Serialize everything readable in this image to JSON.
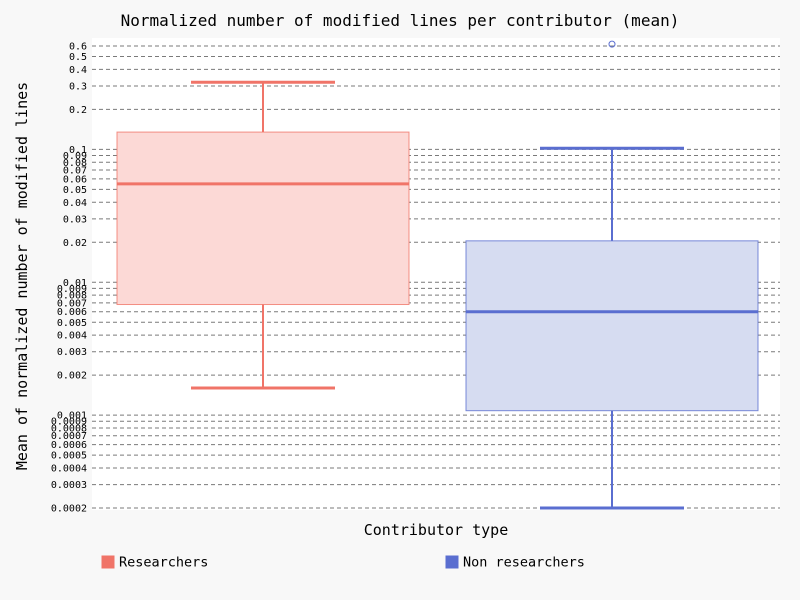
{
  "chart_data": {
    "type": "box",
    "title": "Normalized number of modified lines per contributor (mean)",
    "xlabel": "Contributor type",
    "ylabel": "Mean of normalized number of modified lines",
    "y_scale": "log",
    "ylim": [
      0.0002,
      0.6
    ],
    "grid": true,
    "legend_position": "bottom",
    "y_ticks": [
      {
        "value": 0.0002,
        "label": "0.0002"
      },
      {
        "value": 0.0003,
        "label": "0.0003"
      },
      {
        "value": 0.0004,
        "label": "0.0004"
      },
      {
        "value": 0.0005,
        "label": "0.0005"
      },
      {
        "value": 0.0006,
        "label": "0.0006"
      },
      {
        "value": 0.0007,
        "label": "0.0007"
      },
      {
        "value": 0.0008,
        "label": "0.0008"
      },
      {
        "value": 0.0009,
        "label": "0.0009"
      },
      {
        "value": 0.001,
        "label": "0.001"
      },
      {
        "value": 0.002,
        "label": "0.002"
      },
      {
        "value": 0.003,
        "label": "0.003"
      },
      {
        "value": 0.004,
        "label": "0.004"
      },
      {
        "value": 0.005,
        "label": "0.005"
      },
      {
        "value": 0.006,
        "label": "0.006"
      },
      {
        "value": 0.007,
        "label": "0.007"
      },
      {
        "value": 0.008,
        "label": "0.008"
      },
      {
        "value": 0.009,
        "label": "0.009"
      },
      {
        "value": 0.01,
        "label": "0.01"
      },
      {
        "value": 0.02,
        "label": "0.02"
      },
      {
        "value": 0.03,
        "label": "0.03"
      },
      {
        "value": 0.04,
        "label": "0.04"
      },
      {
        "value": 0.05,
        "label": "0.05"
      },
      {
        "value": 0.06,
        "label": "0.06"
      },
      {
        "value": 0.07,
        "label": "0.07"
      },
      {
        "value": 0.08,
        "label": "0.08"
      },
      {
        "value": 0.09,
        "label": "0.09"
      },
      {
        "value": 0.1,
        "label": "0.1"
      },
      {
        "value": 0.2,
        "label": "0.2"
      },
      {
        "value": 0.3,
        "label": "0.3"
      },
      {
        "value": 0.4,
        "label": "0.4"
      },
      {
        "value": 0.5,
        "label": "0.5"
      },
      {
        "value": 0.6,
        "label": "0.6"
      }
    ],
    "series": [
      {
        "name": "Researchers",
        "color": "#f07468",
        "fill": "#fcd9d6",
        "whisker_low": 0.0016,
        "q1": 0.0068,
        "median": 0.055,
        "q3": 0.135,
        "whisker_high": 0.32,
        "outliers": []
      },
      {
        "name": "Non researchers",
        "color": "#5a6ed0",
        "fill": "#d6dcf1",
        "whisker_low": 0.0002,
        "q1": 0.00108,
        "median": 0.006,
        "q3": 0.0205,
        "whisker_high": 0.102,
        "outliers": [
          0.62
        ]
      }
    ]
  }
}
